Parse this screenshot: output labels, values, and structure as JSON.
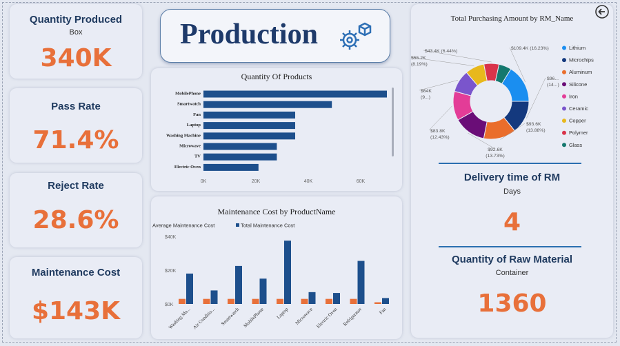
{
  "kpis": {
    "quantity_produced": {
      "title": "Quantity Produced",
      "unit": "Box",
      "value": "340K"
    },
    "pass_rate": {
      "title": "Pass Rate",
      "value": "71.4%"
    },
    "reject_rate": {
      "title": "Reject Rate",
      "value": "28.6%"
    },
    "maintenance_cost": {
      "title": "Maintenance Cost",
      "value": "$143K"
    },
    "delivery_time": {
      "title": "Delivery time of RM",
      "unit": "Days",
      "value": "4"
    },
    "raw_material": {
      "title": "Quantity of Raw Material",
      "unit": "Container",
      "value": "1360"
    }
  },
  "header": {
    "title": "Production",
    "icon": "gear-box-icon",
    "back_icon": "back-arrow-icon"
  },
  "colors": {
    "accent": "#e8703a",
    "navy": "#1d4f8c",
    "title": "#1f3a5f"
  },
  "chart_data": [
    {
      "type": "bar",
      "orientation": "horizontal",
      "title": "Quantity Of Products",
      "categories": [
        "MobilePhone",
        "Smartwatch",
        "Fan",
        "Laptop",
        "Washing Machine",
        "Microwave",
        "TV",
        "Electric Oven"
      ],
      "values": [
        70000,
        49000,
        35000,
        35000,
        35000,
        28000,
        28000,
        21000
      ],
      "xticks": [
        "0K",
        "20K",
        "40K",
        "60K"
      ],
      "xlim": [
        0,
        70000
      ],
      "color": "#1d4f8c"
    },
    {
      "type": "bar",
      "title": "Maintenance Cost by ProductName",
      "categories": [
        "Washing Ma...",
        "Air Conditio...",
        "Smartwatch",
        "MobilePhone",
        "Laptop",
        "Microwave",
        "Electric Oven",
        "Refrigerator",
        "Fan"
      ],
      "series": [
        {
          "name": "Average Maintenance Cost",
          "color": "#e8703a",
          "values": [
            3000,
            3000,
            3000,
            3000,
            3000,
            3000,
            3000,
            3000,
            1000
          ]
        },
        {
          "name": "Total Maintenance Cost",
          "color": "#1d4f8c",
          "values": [
            18000,
            8000,
            22500,
            15000,
            37500,
            7000,
            6500,
            25500,
            3500
          ]
        }
      ],
      "yticks": [
        "$0K",
        "$20K",
        "$40K"
      ],
      "ylim": [
        0,
        40000
      ],
      "legend": "top-left"
    },
    {
      "type": "pie",
      "donut": true,
      "title": "Total Purchasing Amount by RM_Name",
      "slices": [
        {
          "name": "Lithium",
          "value": 109.4,
          "label": "$109.4K (16.23%)",
          "color": "#1a8ef0"
        },
        {
          "name": "Microchips",
          "value": 96,
          "label": "$96... (14...)",
          "color": "#14397e"
        },
        {
          "name": "Aluminum",
          "value": 93.6,
          "label": "$93.6K (13.88%)",
          "color": "#ea6d2b"
        },
        {
          "name": "Silicone",
          "value": 92.6,
          "label": "$92.6K (13.73%)",
          "color": "#6a0d77"
        },
        {
          "name": "Iron",
          "value": 83.8,
          "label": "$83.8K (12.43%)",
          "color": "#e33c97"
        },
        {
          "name": "Ceramic",
          "value": 64,
          "label": "$64K (9...)",
          "color": "#7a55cc"
        },
        {
          "name": "Copper",
          "value": 55.2,
          "label": "$55.2K (8.19%)",
          "color": "#e8b81c"
        },
        {
          "name": "Polymer",
          "value": 43.4,
          "label": "$43.4K (6.44%)",
          "color": "#d9334a"
        },
        {
          "name": "Glass",
          "value": 36,
          "label": "",
          "color": "#14786e"
        }
      ],
      "legend": "right"
    }
  ]
}
